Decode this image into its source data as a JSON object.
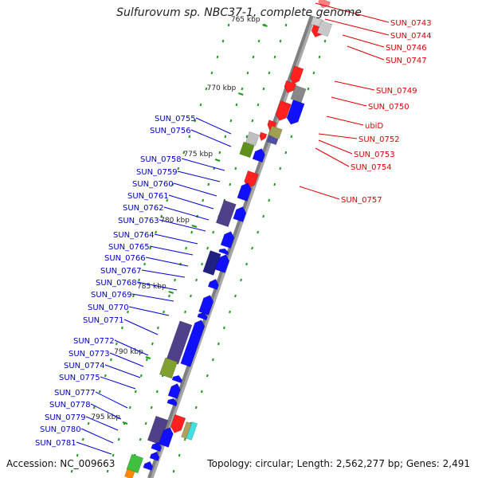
{
  "title": "Sulfurovum sp. NBC37-1, complete genome",
  "footer": {
    "accession": "Accession: NC_009663",
    "topology": "Topology: circular; Length: 2,562,277 bp; Genes: 2,491"
  },
  "colors": {
    "forward_label": "#e00000",
    "reverse_label": "#0000d0",
    "tick": "#1c9b1c",
    "backbone": "#808080"
  },
  "scale_ticks": [
    "765 kbp",
    "770 kbp",
    "775 kbp",
    "780 kbp",
    "785 kbp",
    "790 kbp",
    "795 kbp"
  ],
  "forward_genes": [
    "SUN_0743",
    "SUN_0744",
    "SUN_0746",
    "SUN_0747",
    "SUN_0749",
    "SUN_0750",
    "ubiD",
    "SUN_0752",
    "SUN_0753",
    "SUN_0754",
    "SUN_0757"
  ],
  "reverse_genes": [
    "SUN_0755",
    "SUN_0756",
    "SUN_0758",
    "SUN_0759",
    "SUN_0760",
    "SUN_0761",
    "SUN_0762",
    "SUN_0763",
    "SUN_0764",
    "SUN_0765",
    "SUN_0766",
    "SUN_0767",
    "SUN_0768",
    "SUN_0769",
    "SUN_0770",
    "SUN_0771",
    "SUN_0772",
    "SUN_0773",
    "SUN_0774",
    "SUN_0775",
    "SUN_0777",
    "SUN_0778",
    "SUN_0779",
    "SUN_0780",
    "SUN_0781"
  ]
}
